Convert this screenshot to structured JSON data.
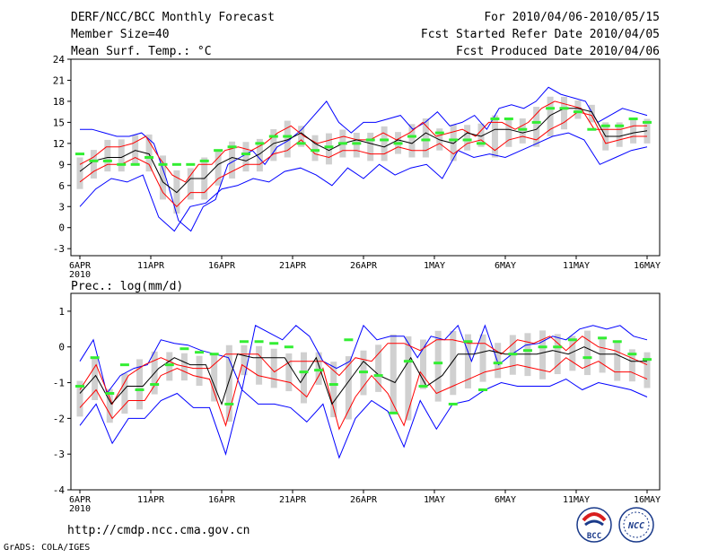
{
  "header": {
    "title": "DERF/NCC/BCC Monthly Forecast",
    "member_size": "Member Size=40",
    "variable": "Mean Surf. Temp.: °C",
    "period": "For 2010/04/06-2010/05/15",
    "started": "Fcst Started Refer Date 2010/04/05",
    "produced": "Fcst Produced Date 2010/04/06"
  },
  "footer": {
    "url": "http://cmdp.ncc.cma.gov.cn",
    "grads": "GrADS: COLA/IGES",
    "logo_bcc": "BCC",
    "logo_ncc": "NCC"
  },
  "colors": {
    "envelope": "#0000ff",
    "spread": "#ff0000",
    "mean": "#000000",
    "observed": "#33ee33",
    "box": "#d0d0d0"
  },
  "chart_data": [
    {
      "type": "line",
      "title": "Mean Surf. Temp.: °C",
      "x_tick_labels": [
        "6APR",
        "11APR",
        "16APR",
        "21APR",
        "26APR",
        "1MAY",
        "6MAY",
        "11MAY",
        "16MAY"
      ],
      "x_year_label": "2010",
      "x_range_days": [
        0,
        40
      ],
      "ylim": [
        -4,
        24
      ],
      "y_ticks": [
        -3,
        0,
        3,
        6,
        9,
        12,
        15,
        18,
        21,
        24
      ],
      "series": [
        {
          "name": "max",
          "values": [
            14,
            14,
            13.5,
            13,
            13,
            13.5,
            12,
            7,
            1,
            -0.5,
            3,
            4,
            9,
            10,
            11,
            9,
            11.5,
            12.5,
            14,
            16,
            18,
            15,
            13.5,
            15,
            15,
            15.5,
            16,
            14,
            15,
            16.5,
            14.5,
            15,
            16,
            14,
            17,
            17.5,
            17,
            18,
            20,
            19,
            18.5,
            18,
            15,
            16,
            17,
            16.5,
            16
          ]
        },
        {
          "name": "upper",
          "values": [
            9,
            10,
            11.5,
            11.5,
            12,
            13,
            10,
            7.5,
            6.5,
            9,
            9,
            11,
            11.5,
            11,
            12,
            13.5,
            14.5,
            13,
            12,
            12.5,
            13,
            12.5,
            12.5,
            13.5,
            12.5,
            13.5,
            15,
            13,
            13.5,
            14,
            13,
            15,
            15,
            14,
            15,
            17,
            18,
            17.5,
            17,
            14,
            14,
            14,
            14.5,
            14.5
          ]
        },
        {
          "name": "mean",
          "values": [
            8,
            9.5,
            10,
            10,
            11,
            10.5,
            6.5,
            5,
            7,
            7,
            9,
            10,
            9.5,
            10.5,
            12,
            12.5,
            13.5,
            12,
            11,
            12,
            12.5,
            12,
            11.5,
            12.5,
            12,
            13.5,
            12.5,
            12,
            13.5,
            13,
            14,
            14,
            13.5,
            14,
            16,
            17,
            17,
            16.5,
            13,
            13,
            13.5,
            13.8
          ]
        },
        {
          "name": "lower",
          "values": [
            6.5,
            8,
            9,
            9,
            10,
            9,
            5,
            3,
            5,
            5,
            7,
            8,
            9,
            9,
            10.5,
            11,
            12.5,
            10.5,
            10,
            11,
            11,
            10.5,
            10.5,
            11.5,
            11,
            11,
            12,
            10.5,
            12,
            12.5,
            11,
            12.5,
            13,
            12.5,
            14,
            15,
            16.5,
            16,
            12,
            12.5,
            13,
            13
          ]
        },
        {
          "name": "min",
          "values": [
            3,
            5.5,
            7,
            6.5,
            7.5,
            1.5,
            -0.5,
            3,
            3.5,
            5.5,
            6,
            7,
            6.5,
            8,
            8.5,
            7.5,
            6,
            8.5,
            7,
            9,
            7.5,
            8.5,
            9,
            7,
            11,
            10,
            10.5,
            10,
            11,
            12,
            13,
            13.5,
            12.5,
            9,
            10,
            11,
            11.5
          ]
        },
        {
          "name": "observed",
          "values": [
            10.5,
            9.5,
            9.5,
            9,
            9,
            10,
            9,
            9,
            9,
            9.5,
            11,
            11.5,
            10.5,
            12,
            13,
            13,
            12,
            11,
            11.5,
            12,
            12,
            12.5,
            12.5,
            12,
            13,
            12.5,
            13.5,
            12.5,
            12.5,
            12,
            15.5,
            15.5,
            14,
            15,
            17,
            17,
            16.5,
            14,
            14.5,
            14.5,
            15.5,
            15
          ]
        }
      ]
    },
    {
      "type": "line",
      "title": "Prec.: log(mm/d)",
      "x_tick_labels": [
        "6APR",
        "11APR",
        "16APR",
        "21APR",
        "26APR",
        "1MAY",
        "6MAY",
        "11MAY",
        "16MAY"
      ],
      "x_year_label": "2010",
      "x_range_days": [
        0,
        40
      ],
      "ylim": [
        -4,
        1.5
      ],
      "y_ticks": [
        -4,
        -3,
        -2,
        -1,
        0,
        1
      ],
      "series": [
        {
          "name": "max",
          "values": [
            -0.4,
            0.2,
            -1.3,
            -0.8,
            -0.6,
            -0.5,
            0.2,
            0.1,
            0.05,
            -0.1,
            -0.2,
            -0.3,
            -1.2,
            0.6,
            0.4,
            0.2,
            0.6,
            0.3,
            -0.4,
            -0.6,
            -0.4,
            0.6,
            0.2,
            0.3,
            0.3,
            -0.3,
            0.3,
            0.2,
            0.6,
            -0.4,
            0.6,
            -0.5,
            -0.2,
            0.05,
            0.1,
            0.3,
            0.2,
            0.5,
            0.6,
            0.5,
            0.6,
            0.3,
            0.2
          ]
        },
        {
          "name": "upper",
          "values": [
            -1.2,
            -0.5,
            -1.6,
            -0.8,
            -0.5,
            -0.3,
            -0.5,
            -0.6,
            -0.6,
            -0.2,
            -0.2,
            -0.2,
            -0.7,
            -0.4,
            -0.4,
            -0.4,
            -0.8,
            -0.3,
            -0.4,
            0.1,
            0.1,
            -0.1,
            0.2,
            0.2,
            0.1,
            0.1,
            -0.2,
            0.2,
            0.1,
            0.3,
            -0.1,
            0.3,
            0.0,
            -0.1,
            -0.3,
            -0.5
          ]
        },
        {
          "name": "mean",
          "values": [
            -1.3,
            -0.8,
            -1.6,
            -1.1,
            -1.1,
            -0.6,
            -0.3,
            -0.5,
            -0.5,
            -1.6,
            -0.2,
            -0.3,
            -0.3,
            -0.3,
            -1.0,
            -0.3,
            -1.6,
            -1.0,
            -0.4,
            -0.8,
            -1.0,
            -0.3,
            -1.1,
            -0.8,
            -0.2,
            -0.2,
            -0.1,
            -0.2,
            -0.2,
            -0.2,
            -0.1,
            -0.2,
            0.0,
            -0.2,
            -0.2,
            -0.4,
            -0.4
          ]
        },
        {
          "name": "lower",
          "values": [
            -1.7,
            -1.2,
            -2.0,
            -1.5,
            -1.5,
            -0.8,
            -0.6,
            -0.8,
            -0.9,
            -2.2,
            -0.5,
            -0.8,
            -0.9,
            -1.0,
            -1.4,
            -0.6,
            -2.3,
            -1.4,
            -0.8,
            -1.3,
            -2.2,
            -0.7,
            -1.3,
            -1.1,
            -0.9,
            -0.7,
            -0.6,
            -0.5,
            -0.6,
            -0.7,
            -0.3,
            -0.6,
            -0.4,
            -0.7,
            -0.7,
            -0.9
          ]
        },
        {
          "name": "min",
          "values": [
            -2.2,
            -1.6,
            -2.7,
            -2.0,
            -2.0,
            -1.5,
            -1.3,
            -1.7,
            -1.7,
            -3.0,
            -1.2,
            -1.6,
            -1.6,
            -1.7,
            -2.1,
            -1.6,
            -3.1,
            -2.0,
            -1.5,
            -1.8,
            -2.8,
            -1.5,
            -2.3,
            -1.6,
            -1.5,
            -1.2,
            -1.0,
            -1.1,
            -1.1,
            -1.1,
            -0.9,
            -1.2,
            -1.0,
            -1.1,
            -1.2,
            -1.4
          ]
        },
        {
          "name": "observed",
          "values": [
            -1.1,
            -0.3,
            -1.3,
            -0.5,
            -1.2,
            -1.05,
            -0.5,
            -0.05,
            -0.15,
            -0.2,
            -1.6,
            0.15,
            0.15,
            0.1,
            0.0,
            -0.7,
            -0.65,
            -1.05,
            0.2,
            -0.7,
            -0.8,
            -1.85,
            -0.4,
            -1.1,
            -0.45,
            -1.6,
            0.15,
            -1.2,
            -0.45,
            -0.2,
            -0.1,
            0.0,
            0.0,
            0.2,
            -0.3,
            0.25,
            0.15,
            -0.2,
            -0.35
          ]
        }
      ]
    }
  ]
}
